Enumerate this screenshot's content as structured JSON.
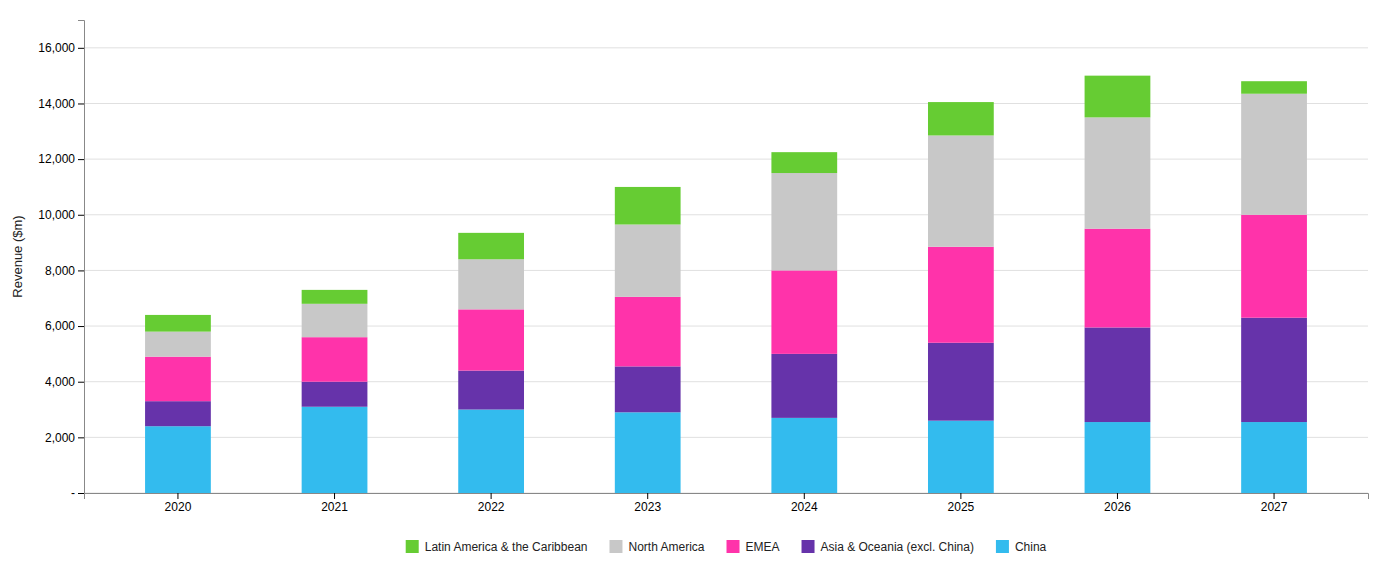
{
  "chart_data": {
    "type": "bar",
    "stacked": true,
    "y_label": "Revenue ($m)",
    "categories": [
      "2020",
      "2021",
      "2022",
      "2023",
      "2024",
      "2025",
      "2026",
      "2027"
    ],
    "series": [
      {
        "name": "China",
        "color": "#33BBEE",
        "values": [
          2400,
          3100,
          3000,
          2900,
          2700,
          2600,
          2550,
          2550
        ]
      },
      {
        "name": "Asia & Oceania (excl. China)",
        "color": "#6633AA",
        "values": [
          900,
          900,
          1400,
          1650,
          2300,
          2800,
          3400,
          3750
        ]
      },
      {
        "name": "EMEA",
        "color": "#FF33AA",
        "values": [
          1600,
          1600,
          2200,
          2500,
          3000,
          3450,
          3550,
          3700
        ]
      },
      {
        "name": "North America",
        "color": "#C8C8C8",
        "values": [
          900,
          1200,
          1800,
          2600,
          3500,
          4000,
          4000,
          4350
        ]
      },
      {
        "name": "Latin America & the Caribbean",
        "color": "#66CC33",
        "values": [
          600,
          500,
          950,
          1350,
          750,
          1200,
          1500,
          450
        ]
      }
    ],
    "ylim": [
      0,
      17000
    ],
    "yticks": [
      {
        "value": 0,
        "label": "-"
      },
      {
        "value": 2000,
        "label": "2,000"
      },
      {
        "value": 4000,
        "label": "4,000"
      },
      {
        "value": 6000,
        "label": "6,000"
      },
      {
        "value": 8000,
        "label": "8,000"
      },
      {
        "value": 10000,
        "label": "10,000"
      },
      {
        "value": 12000,
        "label": "12,000"
      },
      {
        "value": 14000,
        "label": "14,000"
      },
      {
        "value": 16000,
        "label": "16,000"
      }
    ],
    "grid": true,
    "legend": "bottom"
  }
}
